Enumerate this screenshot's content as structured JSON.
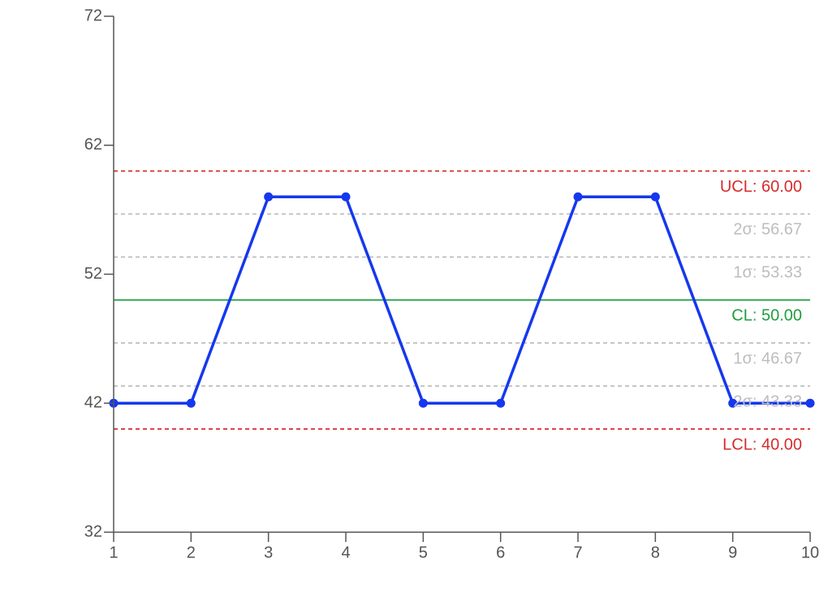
{
  "chart_data": {
    "type": "line",
    "x": [
      1,
      2,
      3,
      4,
      5,
      6,
      7,
      8,
      9,
      10
    ],
    "values": [
      42,
      42,
      58,
      58,
      42,
      42,
      58,
      58,
      42,
      42
    ],
    "color": "#1538ee",
    "xlim": [
      1,
      10
    ],
    "xticks": [
      1,
      2,
      3,
      4,
      5,
      6,
      7,
      8,
      9,
      10
    ],
    "ylim": [
      32,
      72
    ],
    "yticks": [
      32,
      42,
      52,
      62,
      72
    ],
    "reference_lines": [
      {
        "value": 60,
        "label": "UCL: 60.00",
        "color": "#d62c2c",
        "style": "dashed"
      },
      {
        "value": 56.67,
        "label": "2σ: 56.67",
        "color": "#bdbdbd",
        "style": "dashed"
      },
      {
        "value": 53.33,
        "label": "1σ: 53.33",
        "color": "#bdbdbd",
        "style": "dashed"
      },
      {
        "value": 50,
        "label": "CL: 50.00",
        "color": "#1f9e3e",
        "style": "solid"
      },
      {
        "value": 46.67,
        "label": "1σ: 46.67",
        "color": "#bdbdbd",
        "style": "dashed"
      },
      {
        "value": 43.33,
        "label": "2σ: 43.33",
        "color": "#bdbdbd",
        "style": "dashed"
      },
      {
        "value": 40,
        "label": "LCL: 40.00",
        "color": "#d62c2c",
        "style": "dashed"
      }
    ]
  }
}
